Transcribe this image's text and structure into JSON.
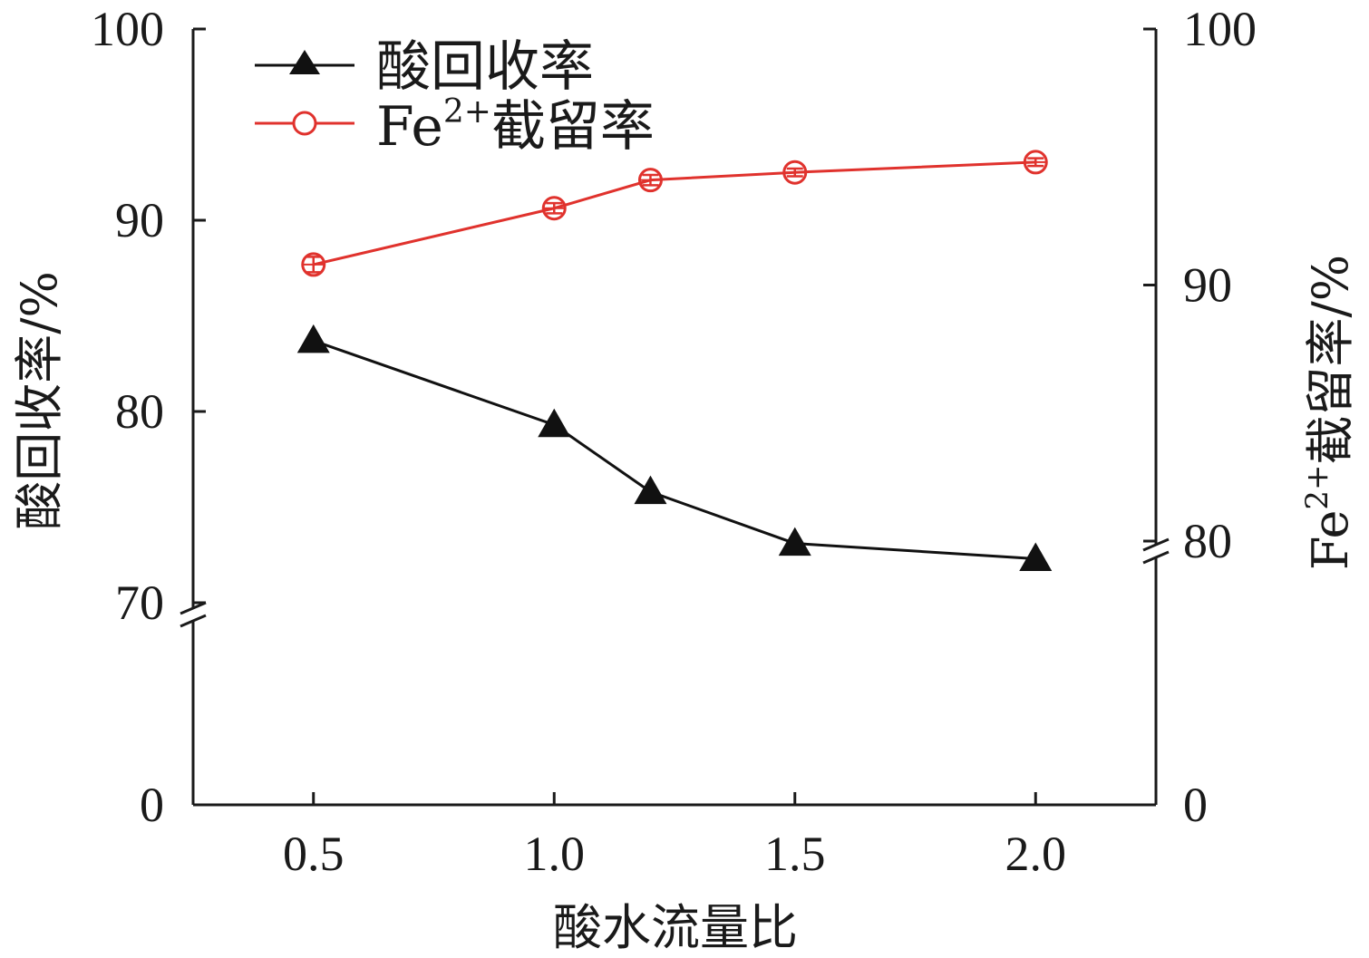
{
  "chart_data": {
    "type": "line",
    "x": [
      0.5,
      1.0,
      1.2,
      1.5,
      2.0
    ],
    "x_ticks": [
      "0.5",
      "1.0",
      "1.5",
      "2.0"
    ],
    "xlabel": "酸水流量比",
    "xlim": [
      0.25,
      2.25
    ],
    "y_left": {
      "label": "酸回收率/%",
      "ticks": [
        "0",
        "70",
        "80",
        "90",
        "100"
      ],
      "lim": [
        0,
        100
      ],
      "axis_break": [
        0,
        70
      ]
    },
    "y_right": {
      "label_main": "Fe",
      "label_sup": "2+",
      "label_rest": "截留率/%",
      "ticks": [
        "0",
        "80",
        "90",
        "100"
      ],
      "lim": [
        0,
        100
      ],
      "axis_break": [
        0,
        80
      ]
    },
    "series": [
      {
        "name": "酸回收率",
        "axis": "left",
        "marker": "filled-triangle",
        "color": "#111111",
        "values": [
          83.7,
          79.3,
          75.8,
          73.1,
          72.3
        ]
      },
      {
        "name_main": "Fe",
        "name_sup": "2+",
        "name_rest": "截留率",
        "axis": "right",
        "marker": "open-circle",
        "color": "#e0322d",
        "values": [
          90.8,
          93.0,
          94.1,
          94.4,
          94.8
        ],
        "error": [
          0.3,
          0.2,
          0.2,
          0.15,
          0.15
        ]
      }
    ],
    "legend_position": "top-left",
    "grid": false
  }
}
